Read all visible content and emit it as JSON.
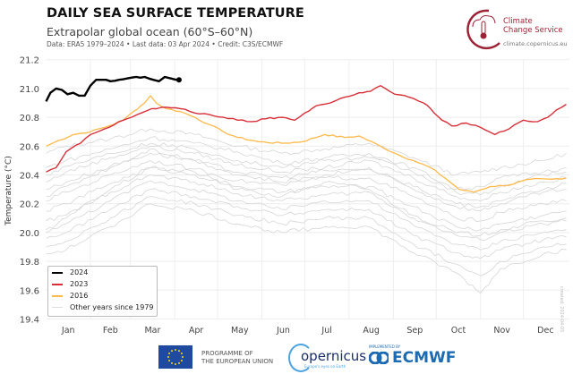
{
  "header": {
    "title": "DAILY SEA SURFACE TEMPERATURE",
    "subtitle": "Extrapolar global ocean (60°S–60°N)",
    "meta": "Data: ERA5 1979–2024 • Last data: 03 Apr 2024 • Credit: C3S/ECMWF"
  },
  "logo": {
    "name_line1": "Climate",
    "name_line2": "Change Service",
    "url": "climate.copernicus.eu"
  },
  "footer": {
    "eu_line1": "PROGRAMME OF",
    "eu_line2": "THE EUROPEAN UNION",
    "copernicus": "opernicus",
    "copernicus_tagline": "Europe's eyes on Earth",
    "implemented_by": "IMPLEMENTED BY",
    "ecmwf": "ECMWF"
  },
  "created_note": "created: 2024-04-05",
  "chart_data": {
    "type": "line",
    "title": "DAILY SEA SURFACE TEMPERATURE",
    "ylabel": "Temperature (°C)",
    "xlabel": "",
    "ylim": [
      19.4,
      21.2
    ],
    "yticks": [
      "19.4",
      "19.6",
      "19.8",
      "20.0",
      "20.2",
      "20.4",
      "20.6",
      "20.8",
      "21.0",
      "21.2"
    ],
    "yticks_values": [
      19.4,
      19.6,
      19.8,
      20.0,
      20.2,
      20.4,
      20.6,
      20.8,
      21.0,
      21.2
    ],
    "xlim_day_of_year": [
      1,
      365
    ],
    "months": [
      "Jan",
      "Feb",
      "Mar",
      "Apr",
      "May",
      "Jun",
      "Jul",
      "Aug",
      "Sep",
      "Oct",
      "Nov",
      "Dec"
    ],
    "month_start_days": [
      1,
      32,
      60,
      91,
      121,
      152,
      182,
      213,
      244,
      274,
      305,
      335
    ],
    "grid": true,
    "legend_position": "bottom-left",
    "colors": {
      "2024": "#000000",
      "2023": "#d7303a",
      "2016": "#fdb94a",
      "other": "#d6d6d6"
    },
    "series": [
      {
        "name": "2024",
        "x": [
          1,
          4,
          8,
          12,
          16,
          20,
          24,
          28,
          32,
          36,
          40,
          46,
          52,
          58,
          64,
          70,
          76,
          80,
          84,
          88,
          92,
          94
        ],
        "y": [
          20.91,
          20.97,
          21.0,
          20.99,
          20.96,
          20.97,
          20.95,
          20.95,
          21.02,
          21.06,
          21.06,
          21.05,
          21.06,
          21.07,
          21.08,
          21.08,
          21.06,
          21.05,
          21.08,
          21.07,
          21.06,
          21.06
        ]
      },
      {
        "name": "2023",
        "x": [
          1,
          8,
          15,
          25,
          32,
          45,
          55,
          65,
          75,
          85,
          95,
          105,
          115,
          125,
          135,
          145,
          155,
          166,
          175,
          182,
          190,
          200,
          210,
          220,
          228,
          235,
          245,
          255,
          265,
          270,
          278,
          285,
          295,
          305,
          315,
          325,
          335,
          345,
          352,
          358,
          365
        ],
        "y": [
          20.42,
          20.45,
          20.56,
          20.62,
          20.68,
          20.73,
          20.78,
          20.82,
          20.86,
          20.87,
          20.86,
          20.83,
          20.82,
          20.8,
          20.78,
          20.77,
          20.79,
          20.8,
          20.78,
          20.83,
          20.88,
          20.9,
          20.94,
          20.97,
          20.98,
          21.02,
          20.96,
          20.94,
          20.9,
          20.86,
          20.78,
          20.74,
          20.76,
          20.73,
          20.68,
          20.72,
          20.78,
          20.77,
          20.8,
          20.85,
          20.89
        ]
      },
      {
        "name": "2016",
        "x": [
          1,
          10,
          20,
          32,
          45,
          55,
          62,
          70,
          74,
          78,
          85,
          95,
          105,
          115,
          125,
          135,
          150,
          166,
          180,
          196,
          210,
          220,
          235,
          245,
          258,
          270,
          280,
          290,
          300,
          312,
          325,
          340,
          355,
          365
        ],
        "y": [
          20.6,
          20.64,
          20.68,
          20.7,
          20.74,
          20.78,
          20.84,
          20.9,
          20.95,
          20.9,
          20.86,
          20.84,
          20.8,
          20.75,
          20.7,
          20.66,
          20.63,
          20.62,
          20.63,
          20.68,
          20.66,
          20.67,
          20.6,
          20.55,
          20.5,
          20.45,
          20.38,
          20.3,
          20.28,
          20.32,
          20.33,
          20.37,
          20.37,
          20.38
        ]
      },
      {
        "name": "Other years since 1979",
        "group": true,
        "x": [
          1,
          15,
          46,
          74,
          105,
          135,
          166,
          196,
          227,
          258,
          288,
          305,
          319,
          349,
          365
        ],
        "members": [
          [
            20.55,
            20.6,
            20.65,
            20.72,
            20.68,
            20.6,
            20.55,
            20.58,
            20.62,
            20.52,
            20.4,
            20.42,
            20.45,
            20.5,
            20.55
          ],
          [
            20.45,
            20.5,
            20.58,
            20.66,
            20.62,
            20.56,
            20.48,
            20.52,
            20.55,
            20.45,
            20.3,
            20.32,
            20.38,
            20.42,
            20.45
          ],
          [
            20.35,
            20.42,
            20.52,
            20.6,
            20.55,
            20.47,
            20.42,
            20.45,
            20.5,
            20.38,
            20.25,
            20.22,
            20.28,
            20.35,
            20.38
          ],
          [
            20.3,
            20.35,
            20.46,
            20.55,
            20.5,
            20.42,
            20.38,
            20.43,
            20.44,
            20.3,
            20.18,
            20.15,
            20.2,
            20.28,
            20.3
          ],
          [
            20.22,
            20.28,
            20.4,
            20.5,
            20.44,
            20.36,
            20.33,
            20.38,
            20.38,
            20.25,
            20.1,
            20.08,
            20.14,
            20.2,
            20.22
          ],
          [
            20.15,
            20.2,
            20.34,
            20.45,
            20.4,
            20.32,
            20.28,
            20.32,
            20.32,
            20.18,
            20.04,
            20.02,
            20.06,
            20.12,
            20.15
          ],
          [
            20.08,
            20.12,
            20.28,
            20.4,
            20.35,
            20.27,
            20.22,
            20.26,
            20.28,
            20.1,
            19.98,
            19.95,
            20.0,
            20.06,
            20.08
          ],
          [
            20.02,
            20.06,
            20.22,
            20.36,
            20.3,
            20.22,
            20.16,
            20.22,
            20.22,
            20.05,
            19.92,
            19.88,
            19.94,
            20.0,
            20.02
          ],
          [
            19.96,
            20.0,
            20.16,
            20.3,
            20.25,
            20.18,
            20.12,
            20.16,
            20.16,
            19.98,
            19.86,
            19.82,
            19.88,
            19.95,
            19.97
          ],
          [
            19.9,
            19.94,
            20.1,
            20.25,
            20.2,
            20.12,
            20.06,
            20.1,
            20.1,
            19.92,
            19.78,
            19.7,
            19.8,
            19.9,
            19.92
          ],
          [
            19.85,
            19.88,
            20.04,
            20.2,
            20.15,
            20.06,
            20.0,
            20.04,
            20.04,
            19.86,
            19.72,
            19.58,
            19.75,
            19.85,
            19.88
          ],
          [
            20.0,
            20.1,
            20.3,
            20.45,
            20.42,
            20.3,
            20.25,
            20.35,
            20.3,
            20.12,
            20.0,
            19.98,
            20.02,
            20.08,
            20.1
          ],
          [
            20.25,
            20.32,
            20.45,
            20.58,
            20.5,
            20.4,
            20.35,
            20.4,
            20.45,
            20.32,
            20.2,
            20.18,
            20.22,
            20.3,
            20.34
          ],
          [
            20.4,
            20.46,
            20.55,
            20.62,
            20.58,
            20.5,
            20.45,
            20.5,
            20.52,
            20.42,
            20.28,
            20.26,
            20.32,
            20.4,
            20.42
          ]
        ]
      }
    ],
    "legend": [
      "2024",
      "2023",
      "2016",
      "Other years since 1979"
    ]
  }
}
